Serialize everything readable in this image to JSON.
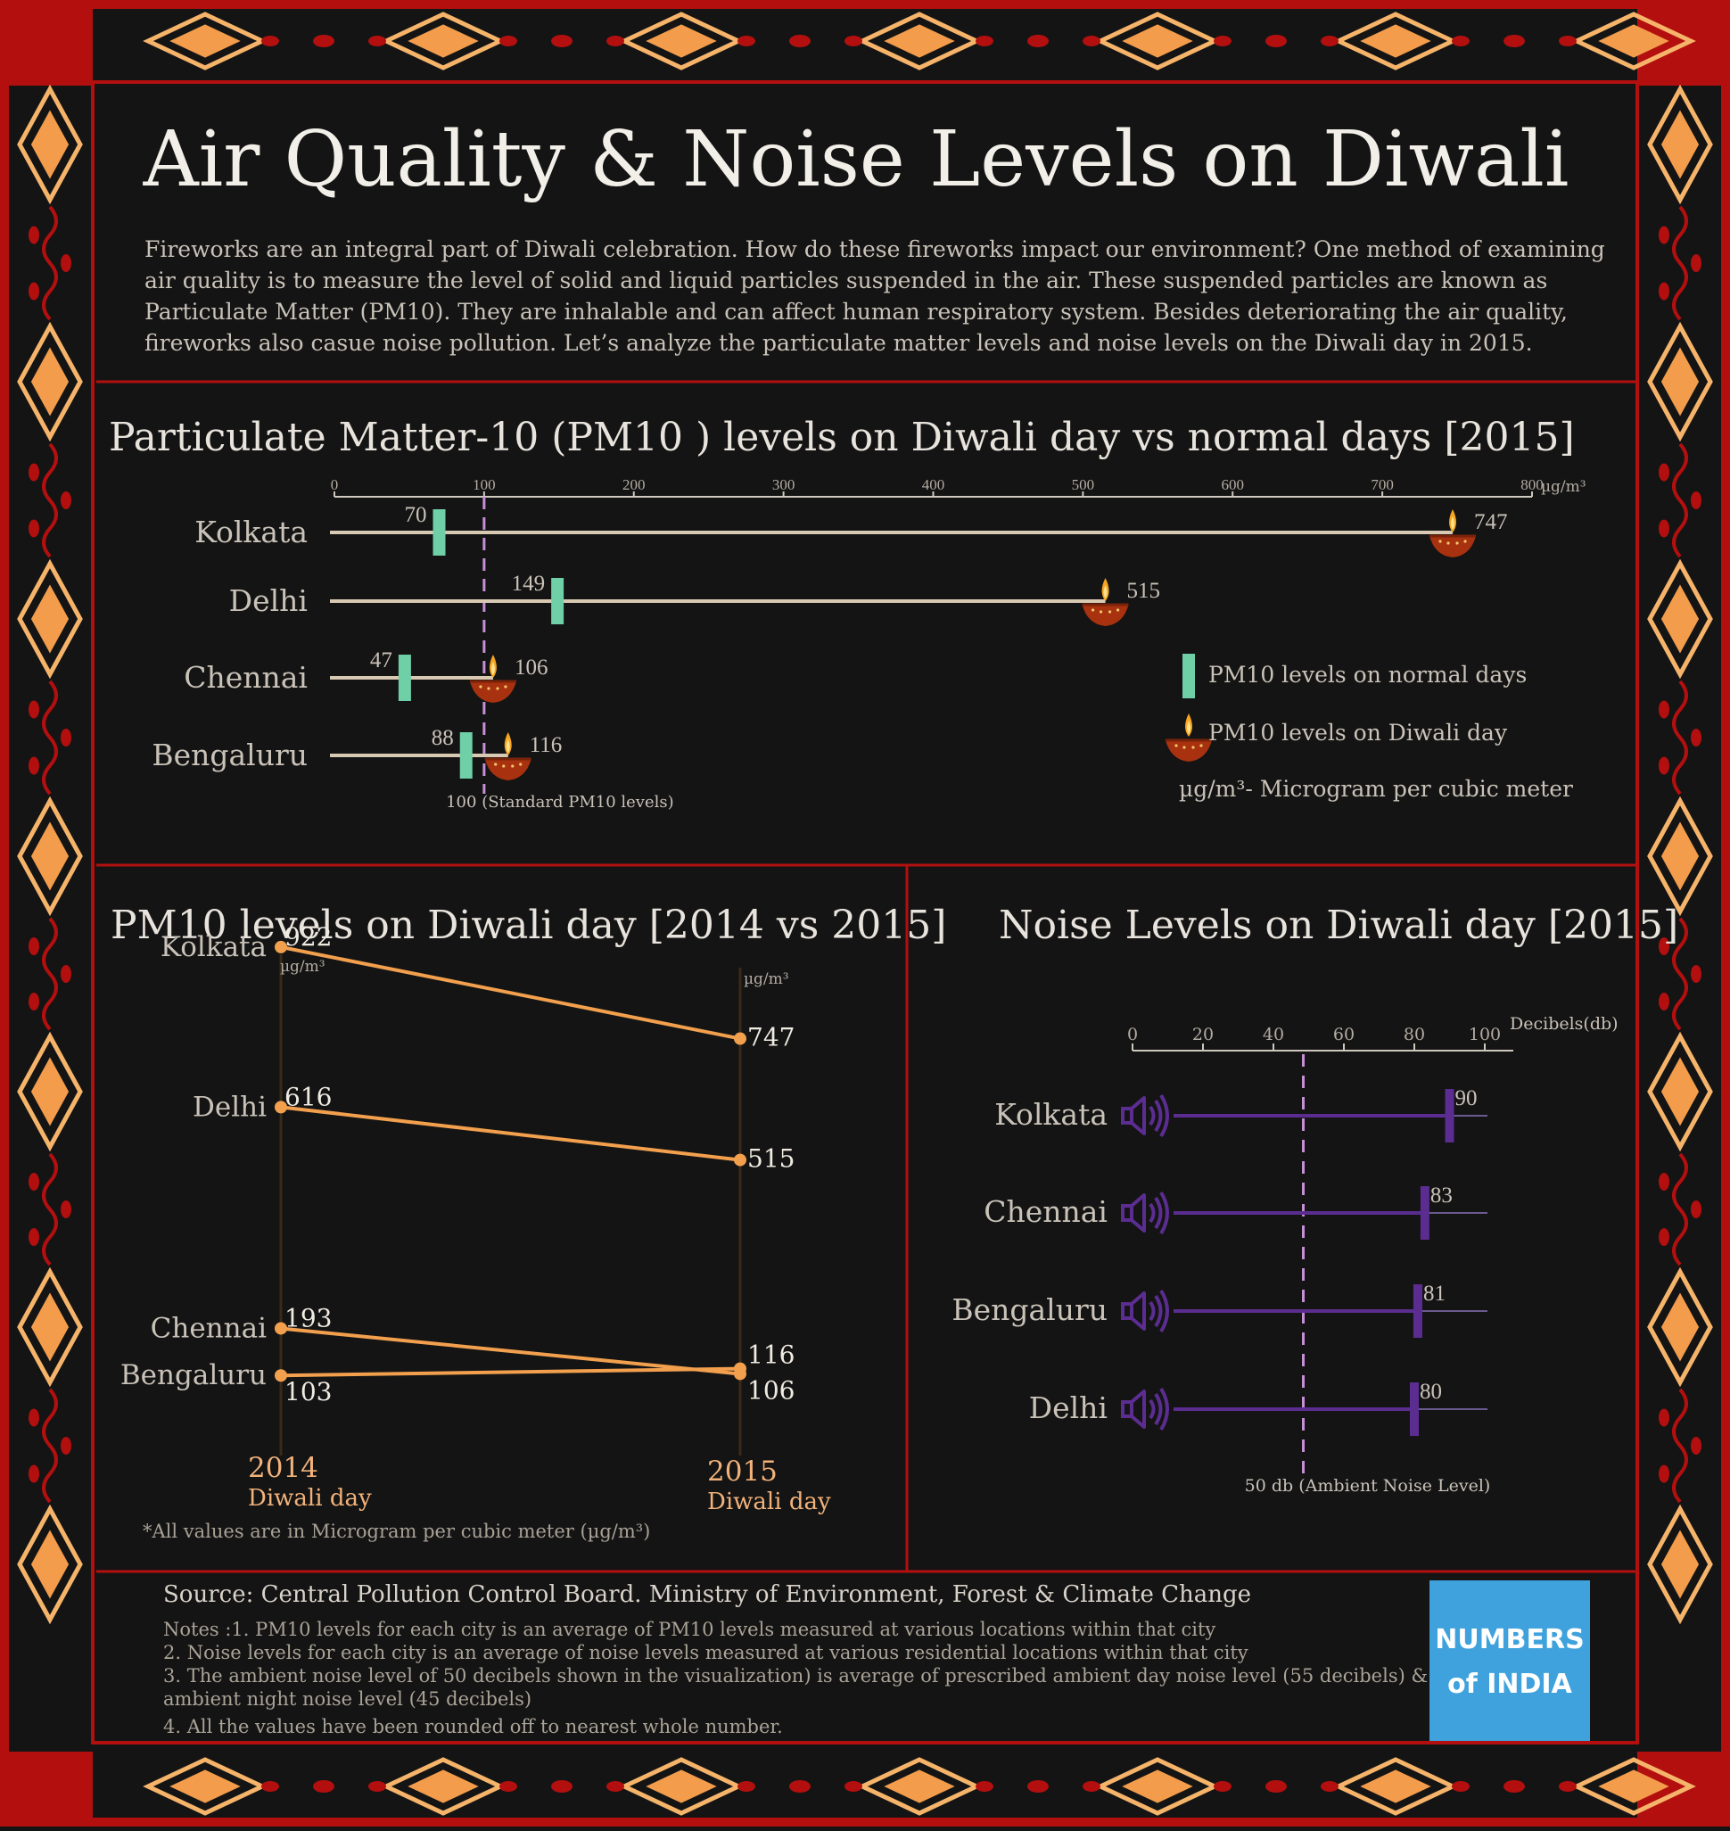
{
  "title": "Air Quality & Noise Levels on Diwali",
  "intro": [
    "Fireworks are an integral part of Diwali celebration. How do these fireworks impact our environment?  One method of examining",
    "air quality is to measure the level of solid and liquid particles suspended in the air. These suspended particles are known as",
    "Particulate Matter (PM10). They are inhalable and can affect human respiratory system.  Besides deteriorating the air quality,",
    "fireworks also casue noise pollution.  Let’s analyze the particulate matter levels and noise levels on the Diwali day in 2015."
  ],
  "colors": {
    "border_red": "#b30f0f",
    "diamond_fill": "#f29c4c",
    "diamond_outline": "#f6b46a",
    "normal_marker": "#6fcfa7",
    "diwali_line": "#f2a04e",
    "noise_purple": "#5b2d91",
    "ref_line": "#c690d6",
    "logo_bg": "#3fa2dc"
  },
  "chart_data": [
    {
      "type": "dumbbell",
      "title": "Particulate Matter-10 (PM10 ) levels on Diwali day vs normal days [2015]",
      "unit": "µg/m³",
      "xlim": [
        0,
        800
      ],
      "ticks": [
        0,
        100,
        200,
        300,
        400,
        500,
        600,
        700,
        800
      ],
      "categories": [
        "Kolkata",
        "Delhi",
        "Chennai",
        "Bengaluru"
      ],
      "series": [
        {
          "name": "PM10 levels on normal days",
          "values": [
            70,
            149,
            47,
            88
          ]
        },
        {
          "name": "PM10 levels on Diwali day",
          "values": [
            747,
            515,
            106,
            116
          ]
        }
      ],
      "reference": {
        "value": 100,
        "label": "100 (Standard PM10 levels)"
      },
      "unit_note": "µg/m³- Microgram per cubic meter",
      "legend": "right"
    },
    {
      "type": "slope",
      "title": "PM10 levels on Diwali day [2014 vs 2015]",
      "unit": "µg/m³",
      "x": [
        "2014",
        "2015"
      ],
      "x_sub": "Diwali day",
      "series": [
        {
          "name": "Kolkata",
          "values": [
            922,
            747
          ]
        },
        {
          "name": "Delhi",
          "values": [
            616,
            515
          ]
        },
        {
          "name": "Chennai",
          "values": [
            193,
            106
          ]
        },
        {
          "name": "Bengaluru",
          "values": [
            103,
            116
          ]
        }
      ],
      "footnote": "*All values are in Microgram per cubic meter (µg/m³)"
    },
    {
      "type": "bar",
      "title": "Noise Levels on Diwali day [2015]",
      "unit": "Decibels(db)",
      "xlim": [
        0,
        100
      ],
      "ticks": [
        0,
        20,
        40,
        60,
        80,
        100
      ],
      "categories": [
        "Kolkata",
        "Chennai",
        "Bengaluru",
        "Delhi"
      ],
      "values": [
        90,
        83,
        81,
        80
      ],
      "reference": {
        "value": 50,
        "label": "50 db (Ambient Noise Level)"
      }
    }
  ],
  "source": "Source: Central Pollution Control Board. Ministry of Environment, Forest & Climate Change",
  "notes": [
    "Notes :1.  PM10 levels for each city is an average of PM10 levels measured at various locations within that city",
    "2. Noise levels for each city is an average of noise levels measured at various residential locations within that city",
    "3. The ambient noise level of 50 decibels shown in the visualization) is average of prescribed ambient day noise level (55 decibels) &",
    "ambient night noise level (45 decibels)",
    "4. All the values have been rounded off to nearest whole number."
  ],
  "logo": {
    "line1": "NUMBERS",
    "line2": "of  INDIA"
  }
}
